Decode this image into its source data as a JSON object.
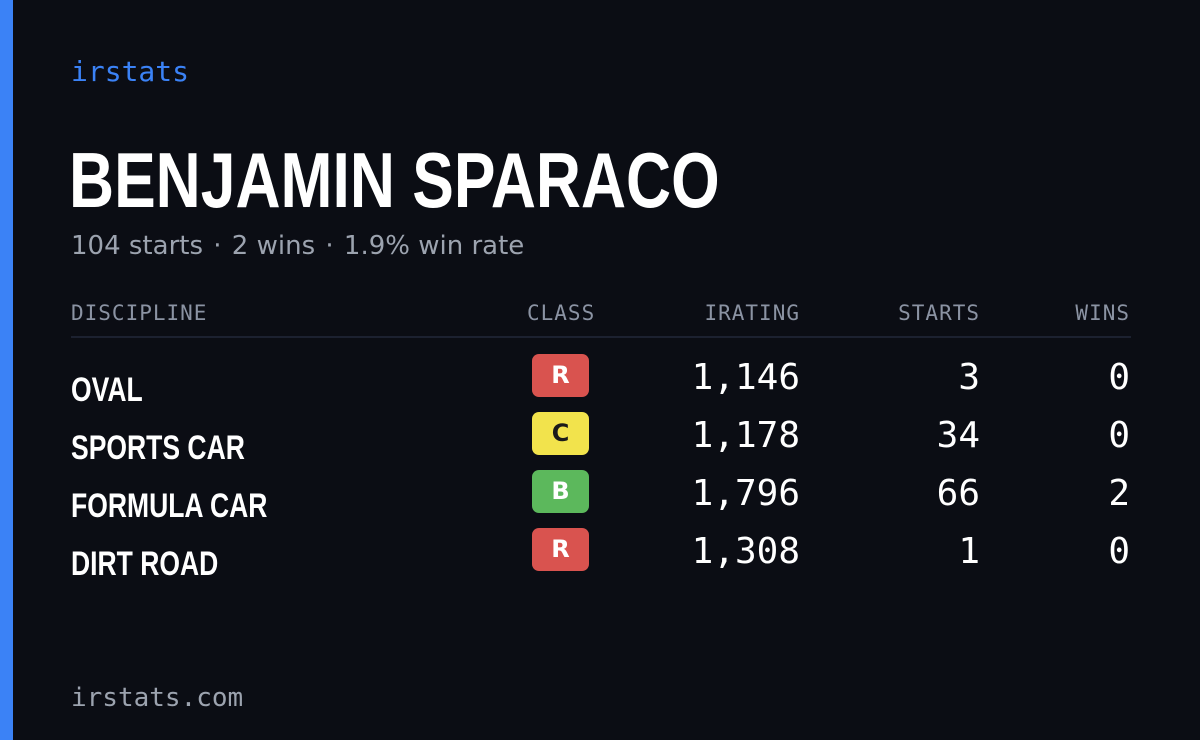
{
  "brand": "irstats",
  "player": {
    "name": "BENJAMIN SPARACO"
  },
  "summary": {
    "starts": "104 starts",
    "wins": "2 wins",
    "win_rate": "1.9% win rate",
    "separator": "·"
  },
  "table": {
    "headers": {
      "discipline": "DISCIPLINE",
      "class": "CLASS",
      "irating": "IRATING",
      "starts": "STARTS",
      "wins": "WINS"
    },
    "rows": [
      {
        "discipline": "OVAL",
        "class": "R",
        "class_bg": "#d9534f",
        "class_fg": "#ffffff",
        "irating": "1,146",
        "starts": "3",
        "wins": "0"
      },
      {
        "discipline": "SPORTS CAR",
        "class": "C",
        "class_bg": "#f2e34c",
        "class_fg": "#1a1a1a",
        "irating": "1,178",
        "starts": "34",
        "wins": "0"
      },
      {
        "discipline": "FORMULA CAR",
        "class": "B",
        "class_bg": "#5cb85c",
        "class_fg": "#ffffff",
        "irating": "1,796",
        "starts": "66",
        "wins": "2"
      },
      {
        "discipline": "DIRT ROAD",
        "class": "R",
        "class_bg": "#d9534f",
        "class_fg": "#ffffff",
        "irating": "1,308",
        "starts": "1",
        "wins": "0"
      }
    ]
  },
  "footer": {
    "url": "irstats.com"
  },
  "colors": {
    "background": "#0b0d14",
    "accent": "#3b82f6",
    "muted_text": "#9ca3af"
  }
}
